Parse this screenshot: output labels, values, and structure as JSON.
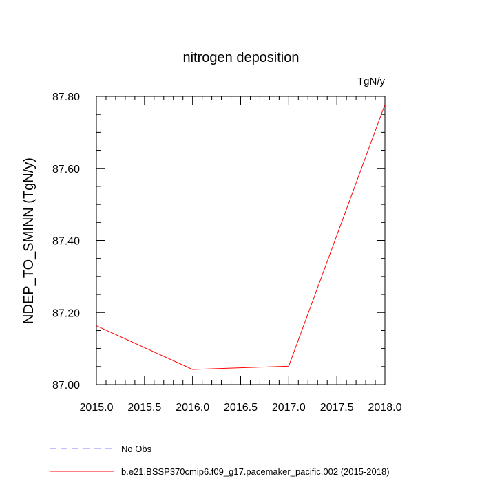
{
  "chart_data": {
    "type": "line",
    "title": "nitrogen deposition",
    "units_label": "TgN/y",
    "ylabel": "NDEP_TO_SMINN  (TgN/y)",
    "xlabel": "",
    "xlim": [
      2015.0,
      2018.0
    ],
    "ylim": [
      87.0,
      87.8
    ],
    "x_ticks": [
      2015.0,
      2015.5,
      2016.0,
      2016.5,
      2017.0,
      2017.5,
      2018.0
    ],
    "x_tick_labels": [
      "2015.0",
      "2015.5",
      "2016.0",
      "2016.5",
      "2017.0",
      "2017.5",
      "2018.0"
    ],
    "y_ticks": [
      87.0,
      87.2,
      87.4,
      87.6,
      87.8
    ],
    "y_tick_labels": [
      "87.00",
      "87.20",
      "87.40",
      "87.60",
      "87.80"
    ],
    "grid": false,
    "legend_position": "bottom",
    "series": [
      {
        "name": "No Obs",
        "color": "#8080ff",
        "line_style": "dashed",
        "x": [],
        "values": []
      },
      {
        "name": "b.e21.BSSP370cmip6.f09_g17.pacemaker_pacific.002 (2015-2018)",
        "color": "#ff0000",
        "line_style": "solid",
        "x": [
          2015.0,
          2016.0,
          2017.0,
          2018.0
        ],
        "values": [
          87.163,
          87.042,
          87.051,
          87.777
        ]
      }
    ]
  }
}
